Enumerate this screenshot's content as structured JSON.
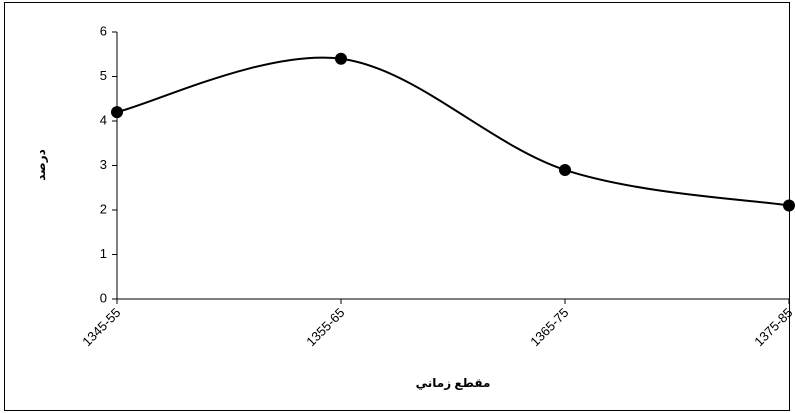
{
  "chart_data": {
    "type": "line",
    "x_label": "مقطع زماني",
    "y_label": "درصد",
    "categories": [
      "1345-55",
      "1355-65",
      "1365-75",
      "1375-85"
    ],
    "values": [
      4.2,
      5.4,
      2.9,
      2.1
    ],
    "color": "#000000",
    "smooth": true,
    "ylim": [
      0,
      6
    ],
    "yticks": [
      0,
      1,
      2,
      3,
      4,
      5,
      6
    ],
    "grid": false
  }
}
